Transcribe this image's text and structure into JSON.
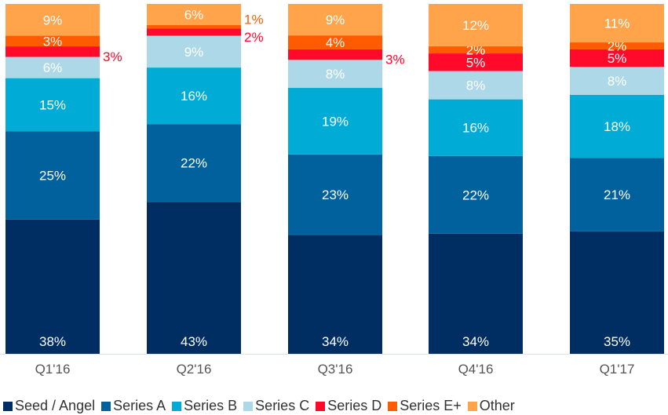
{
  "chart_data": {
    "type": "bar",
    "stacked": true,
    "categories": [
      "Q1'16",
      "Q2'16",
      "Q3'16",
      "Q4'16",
      "Q1'17"
    ],
    "series": [
      {
        "name": "Seed / Angel",
        "color": "#002e62",
        "values": [
          38,
          43,
          34,
          34,
          35
        ]
      },
      {
        "name": "Series A",
        "color": "#00619c",
        "values": [
          25,
          22,
          23,
          22,
          21
        ]
      },
      {
        "name": "Series B",
        "color": "#00acd6",
        "values": [
          15,
          16,
          19,
          16,
          18
        ]
      },
      {
        "name": "Series C",
        "color": "#acd8e7",
        "values": [
          6,
          9,
          8,
          8,
          8
        ]
      },
      {
        "name": "Series D",
        "color": "#ff0a2a",
        "values": [
          3,
          2,
          3,
          5,
          5
        ],
        "label_outside": [
          true,
          true,
          true,
          false,
          false
        ]
      },
      {
        "name": "Series E+",
        "color": "#ff5b00",
        "values": [
          3,
          1,
          4,
          2,
          2
        ],
        "label_outside": [
          false,
          true,
          false,
          false,
          false
        ]
      },
      {
        "name": "Other",
        "color": "#ffa44a",
        "values": [
          9,
          6,
          9,
          12,
          11
        ]
      }
    ],
    "value_suffix": "%",
    "legend": "bottom",
    "grid": false,
    "xlabel": "",
    "ylabel": ""
  }
}
